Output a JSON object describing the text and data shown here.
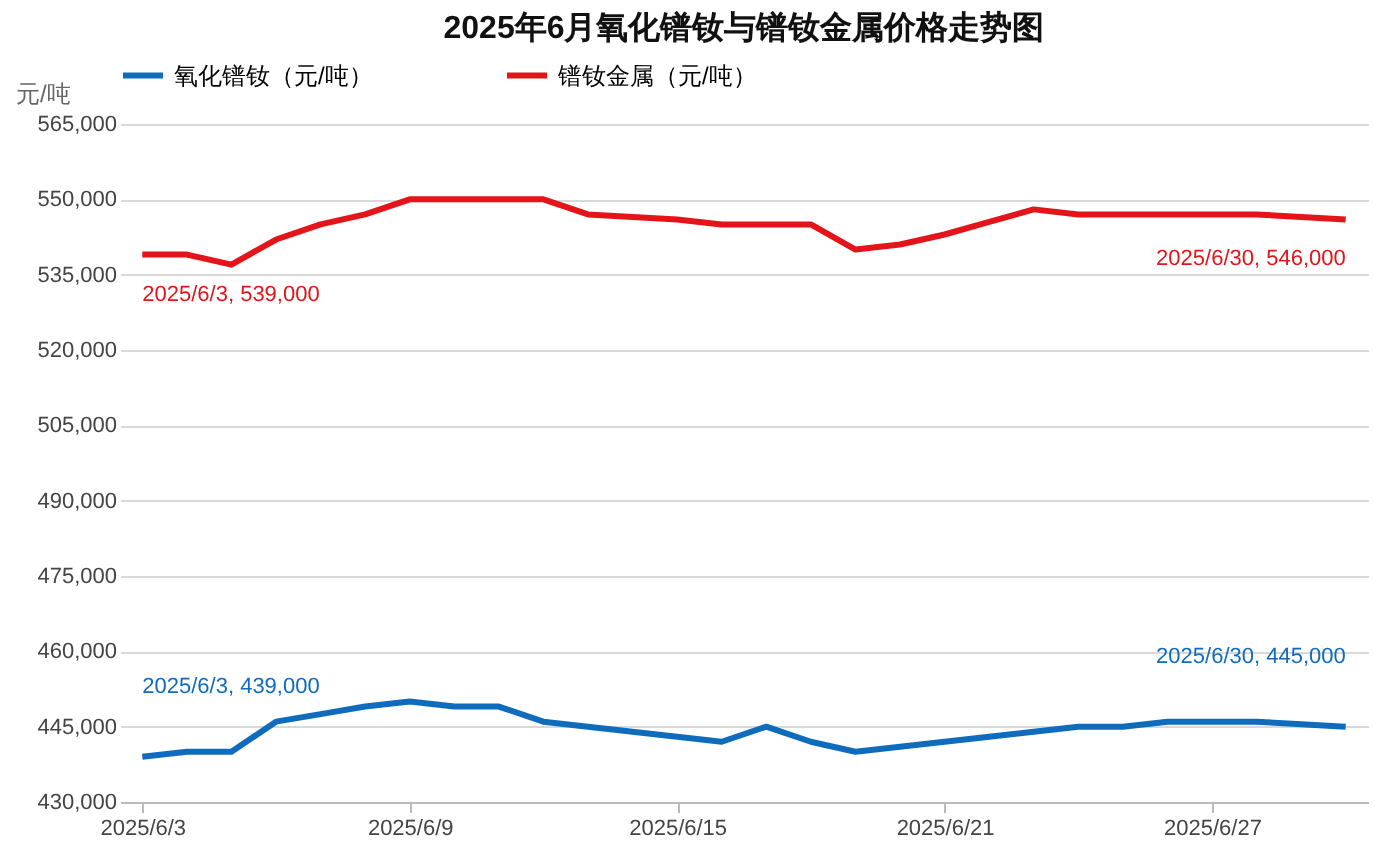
{
  "chart_data": {
    "type": "line",
    "title": "2025年6月氧化镨钕与镨钕金属价格走势图",
    "ylabel": "元/吨",
    "x": [
      "2025-06-03",
      "2025-06-04",
      "2025-06-05",
      "2025-06-06",
      "2025-06-07",
      "2025-06-08",
      "2025-06-09",
      "2025-06-10",
      "2025-06-11",
      "2025-06-12",
      "2025-06-13",
      "2025-06-14",
      "2025-06-15",
      "2025-06-16",
      "2025-06-17",
      "2025-06-18",
      "2025-06-19",
      "2025-06-20",
      "2025-06-21",
      "2025-06-22",
      "2025-06-23",
      "2025-06-24",
      "2025-06-25",
      "2025-06-26",
      "2025-06-27",
      "2025-06-28",
      "2025-06-29",
      "2025-06-30"
    ],
    "series": [
      {
        "name": "氧化镨钕（元/吨）",
        "color": "#0f6cbd",
        "values": [
          439000,
          440000,
          440000,
          446000,
          447500,
          449000,
          450000,
          449000,
          449000,
          446000,
          445000,
          444000,
          443000,
          442000,
          445000,
          442000,
          440000,
          441000,
          442000,
          443000,
          444000,
          445000,
          445000,
          446000,
          446000,
          446000,
          445500,
          445000
        ]
      },
      {
        "name": "镨钕金属（元/吨）",
        "color": "#e3151a",
        "values": [
          539000,
          539000,
          537000,
          542000,
          545000,
          547000,
          550000,
          550000,
          550000,
          550000,
          547000,
          546500,
          546000,
          545000,
          545000,
          545000,
          540000,
          541000,
          543000,
          545500,
          548000,
          547000,
          547000,
          547000,
          547000,
          547000,
          546500,
          546000
        ]
      }
    ],
    "xlim": [
      "2025-06-02T12:00",
      "2025-06-30T12:00"
    ],
    "xticks": [
      {
        "value": "2025-06-03",
        "label": "2025/6/3"
      },
      {
        "value": "2025-06-09",
        "label": "2025/6/9"
      },
      {
        "value": "2025-06-15",
        "label": "2025/6/15"
      },
      {
        "value": "2025-06-21",
        "label": "2025/6/21"
      },
      {
        "value": "2025-06-27",
        "label": "2025/6/27"
      }
    ],
    "ylim": [
      430000,
      565000
    ],
    "yticks": [
      {
        "value": 430000,
        "label": "430,000"
      },
      {
        "value": 445000,
        "label": "445,000"
      },
      {
        "value": 460000,
        "label": "460,000"
      },
      {
        "value": 475000,
        "label": "475,000"
      },
      {
        "value": 490000,
        "label": "490,000"
      },
      {
        "value": 505000,
        "label": "505,000"
      },
      {
        "value": 520000,
        "label": "520,000"
      },
      {
        "value": 535000,
        "label": "535,000"
      },
      {
        "value": 550000,
        "label": "550,000"
      },
      {
        "value": 565000,
        "label": "565,000"
      }
    ],
    "grid": "y",
    "legend": "top",
    "marker": "none",
    "line_style": "solid",
    "annotations": [
      {
        "text": "2025/6/3, 539,000",
        "x": "2025-06-03",
        "y": 539000
      },
      {
        "text": "2025/6/30, 546,000",
        "x": "2025-06-30",
        "y": 546000
      },
      {
        "text": "2025/6/3, 439,000",
        "x": "2025-06-03",
        "y": 439000
      },
      {
        "text": "2025/6/30, 445,000",
        "x": "2025-06-30",
        "y": 445000
      }
    ]
  }
}
